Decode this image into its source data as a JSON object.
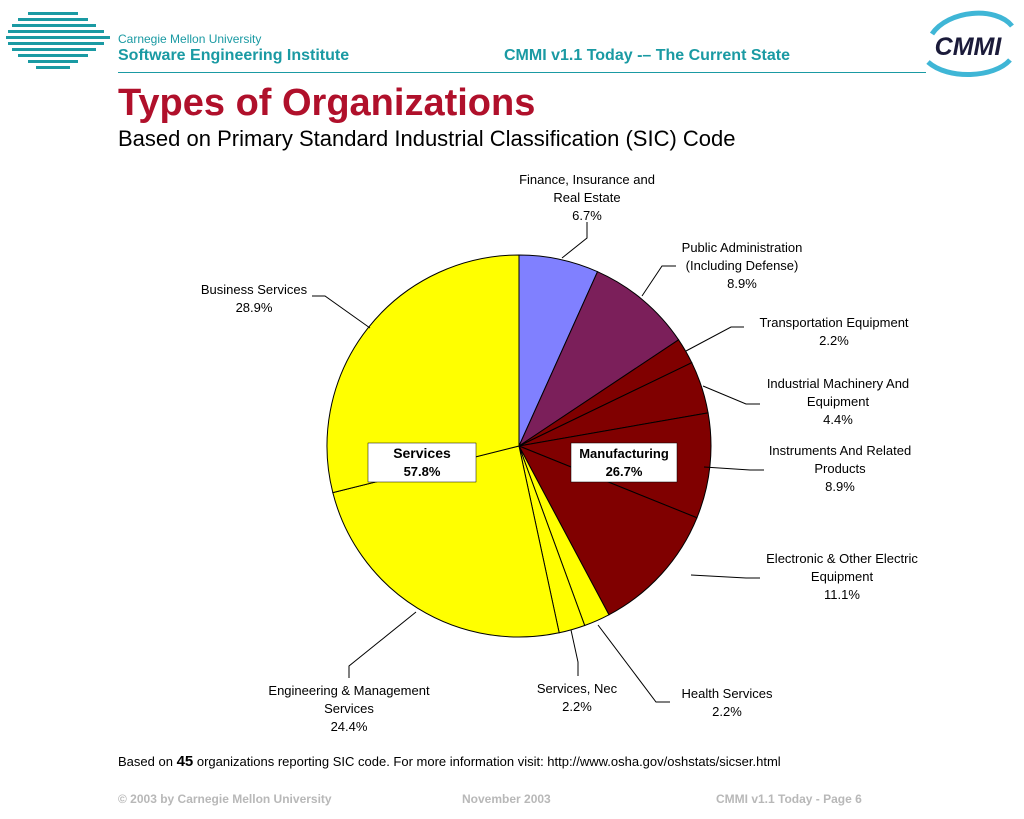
{
  "header": {
    "university": "Carnegie Mellon University",
    "institute": "Software Engineering Institute",
    "title": "CMMI v1.1 Today -– The Current State",
    "logo_text": "CMMI"
  },
  "page": {
    "title": "Types of Organizations",
    "subtitle": "Based on Primary Standard Industrial Classification (SIC) Code"
  },
  "chart_data": {
    "type": "pie",
    "start_angle_deg": 0,
    "direction": "clockwise",
    "slices": [
      {
        "label": [
          "Finance, Insurance and",
          "Real Estate"
        ],
        "value": 6.7,
        "value_text": "6.7%",
        "color": "#8080ff"
      },
      {
        "label": [
          "Public Administration",
          "(Including Defense)"
        ],
        "value": 8.9,
        "value_text": "8.9%",
        "color": "#7b1f5a"
      },
      {
        "label": [
          "Transportation Equipment"
        ],
        "value": 2.2,
        "value_text": "2.2%",
        "color": "#800000"
      },
      {
        "label": [
          "Industrial Machinery And",
          "Equipment"
        ],
        "value": 4.4,
        "value_text": "4.4%",
        "color": "#800000"
      },
      {
        "label": [
          "Instruments And Related",
          "Products"
        ],
        "value": 8.9,
        "value_text": "8.9%",
        "color": "#800000"
      },
      {
        "label": [
          "Electronic & Other Electric",
          "Equipment"
        ],
        "value": 11.1,
        "value_text": "11.1%",
        "color": "#800000"
      },
      {
        "label": [
          "Health Services"
        ],
        "value": 2.2,
        "value_text": "2.2%",
        "color": "#ffff00"
      },
      {
        "label": [
          "Services, Nec"
        ],
        "value": 2.2,
        "value_text": "2.2%",
        "color": "#ffff00"
      },
      {
        "label": [
          "Engineering & Management",
          "Services"
        ],
        "value": 24.4,
        "value_text": "24.4%",
        "color": "#ffff00"
      },
      {
        "label": [
          "Business Services"
        ],
        "value": 28.9,
        "value_text": "28.9%",
        "color": "#ffff00"
      }
    ],
    "groups": [
      {
        "name": "Services",
        "value_text": "57.8%"
      },
      {
        "name": "Manufacturing",
        "value_text": "26.7%"
      }
    ]
  },
  "footnote": {
    "prefix": "Based on",
    "count": "45",
    "suffix": "organizations reporting SIC code.  For more information visit: http://www.osha.gov/oshstats/sicser.html"
  },
  "footer": {
    "copyright": "© 2003 by Carnegie Mellon University",
    "date": "November 2003",
    "page": "CMMI v1.1 Today - Page 6"
  }
}
